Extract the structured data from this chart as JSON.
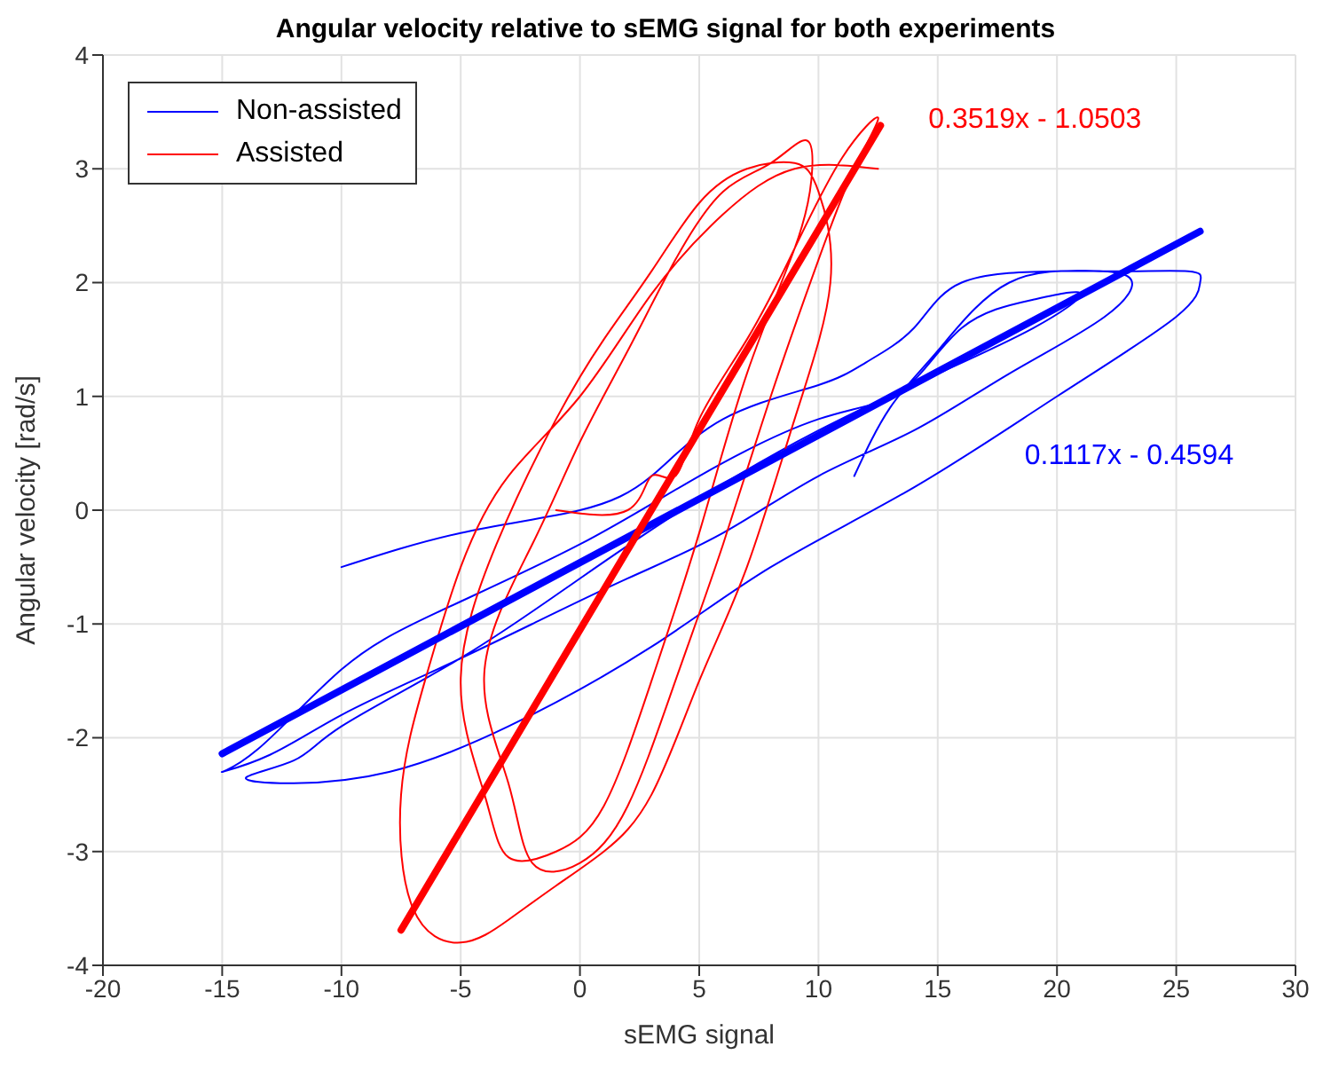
{
  "chart_data": {
    "type": "line",
    "title": "Angular velocity relative to sEMG signal for both experiments",
    "xlabel": "sEMG signal",
    "ylabel": "Angular velocity [rad/s]",
    "xlim": [
      -20,
      30
    ],
    "xticks": [
      -20,
      -15,
      -10,
      -5,
      0,
      5,
      10,
      15,
      20,
      25,
      30
    ],
    "ylim": [
      -4,
      4
    ],
    "yticks": [
      -4,
      -3,
      -2,
      -1,
      0,
      1,
      2,
      3,
      4
    ],
    "grid": true,
    "legend": "top left",
    "marker": "none",
    "line_style": "solid",
    "series": [
      {
        "name": "Non-assisted",
        "color": "#0000ff",
        "x": [
          -10,
          -5,
          0,
          3,
          6,
          10,
          12,
          14,
          16,
          20,
          23,
          22,
          18,
          14,
          10,
          6,
          2,
          -2,
          -6,
          -10,
          -13,
          -15,
          -13.5,
          -10,
          -6,
          0,
          5,
          10,
          13.5,
          16,
          19,
          21,
          19,
          15,
          10,
          5,
          0,
          -5,
          -10,
          -12,
          -14,
          -12,
          -8,
          -3,
          3,
          8,
          14,
          20,
          25,
          26,
          25.5,
          22,
          18,
          15,
          13,
          11.5
        ],
        "values": [
          -0.5,
          -0.2,
          0,
          0.3,
          0.8,
          1.1,
          1.3,
          1.6,
          2.0,
          2.1,
          2.05,
          1.7,
          1.2,
          0.7,
          0.3,
          -0.2,
          -0.6,
          -1.0,
          -1.4,
          -1.8,
          -2.15,
          -2.3,
          -2.1,
          -1.4,
          -0.9,
          -0.3,
          0.3,
          0.8,
          1.05,
          1.6,
          1.85,
          1.9,
          1.6,
          1.2,
          0.7,
          0.1,
          -0.6,
          -1.3,
          -1.9,
          -2.2,
          -2.35,
          -2.4,
          -2.3,
          -1.9,
          -1.2,
          -0.5,
          0.2,
          1.0,
          1.7,
          2.0,
          2.1,
          2.1,
          2.0,
          1.4,
          0.9,
          0.3
        ]
      },
      {
        "name": "Assisted",
        "color": "#ff0000",
        "x": [
          -1,
          2,
          3,
          4,
          5,
          7,
          9,
          11,
          12.5,
          11.5,
          10,
          8,
          6,
          4,
          2,
          0,
          -2,
          -3,
          -4,
          -2,
          0,
          2,
          4,
          6,
          8,
          9.5,
          9.7,
          9,
          7,
          5,
          3,
          1,
          -1,
          -3,
          -4,
          -5,
          -3.5,
          -1,
          1,
          3,
          5,
          7,
          9,
          10,
          10.5,
          9,
          7,
          5,
          3,
          1,
          -1,
          -3,
          -5,
          -7,
          -7.5,
          -6.5,
          -5,
          -3,
          0,
          3,
          6,
          9,
          12.5
        ],
        "values": [
          0,
          0,
          0.3,
          0.3,
          0.8,
          1.5,
          2.3,
          3.1,
          3.45,
          3.0,
          2.2,
          1.0,
          -0.3,
          -1.5,
          -2.6,
          -3.1,
          -3.1,
          -2.4,
          -1.4,
          -0.3,
          0.6,
          1.4,
          2.2,
          2.8,
          3.05,
          3.25,
          2.9,
          2.3,
          1.2,
          -0.2,
          -1.5,
          -2.6,
          -3.0,
          -3.05,
          -2.5,
          -1.5,
          -0.3,
          0.8,
          1.5,
          2.1,
          2.7,
          3.0,
          3.05,
          2.8,
          2.0,
          0.8,
          -0.5,
          -1.5,
          -2.5,
          -3.0,
          -3.3,
          -3.6,
          -3.8,
          -3.5,
          -2.5,
          -1.5,
          -0.5,
          0.3,
          1.0,
          1.9,
          2.6,
          3.0,
          3.0
        ]
      },
      {
        "color": "#0000ff",
        "x": [
          -15,
          26
        ],
        "values": [
          -2.14,
          2.45
        ]
      },
      {
        "color": "#ff0000",
        "x": [
          -7.5,
          12.6
        ],
        "values": [
          -3.69,
          3.38
        ]
      }
    ],
    "annotations": [
      "0.1117x - 0.4594",
      "0.3519x - 1.0503"
    ]
  }
}
